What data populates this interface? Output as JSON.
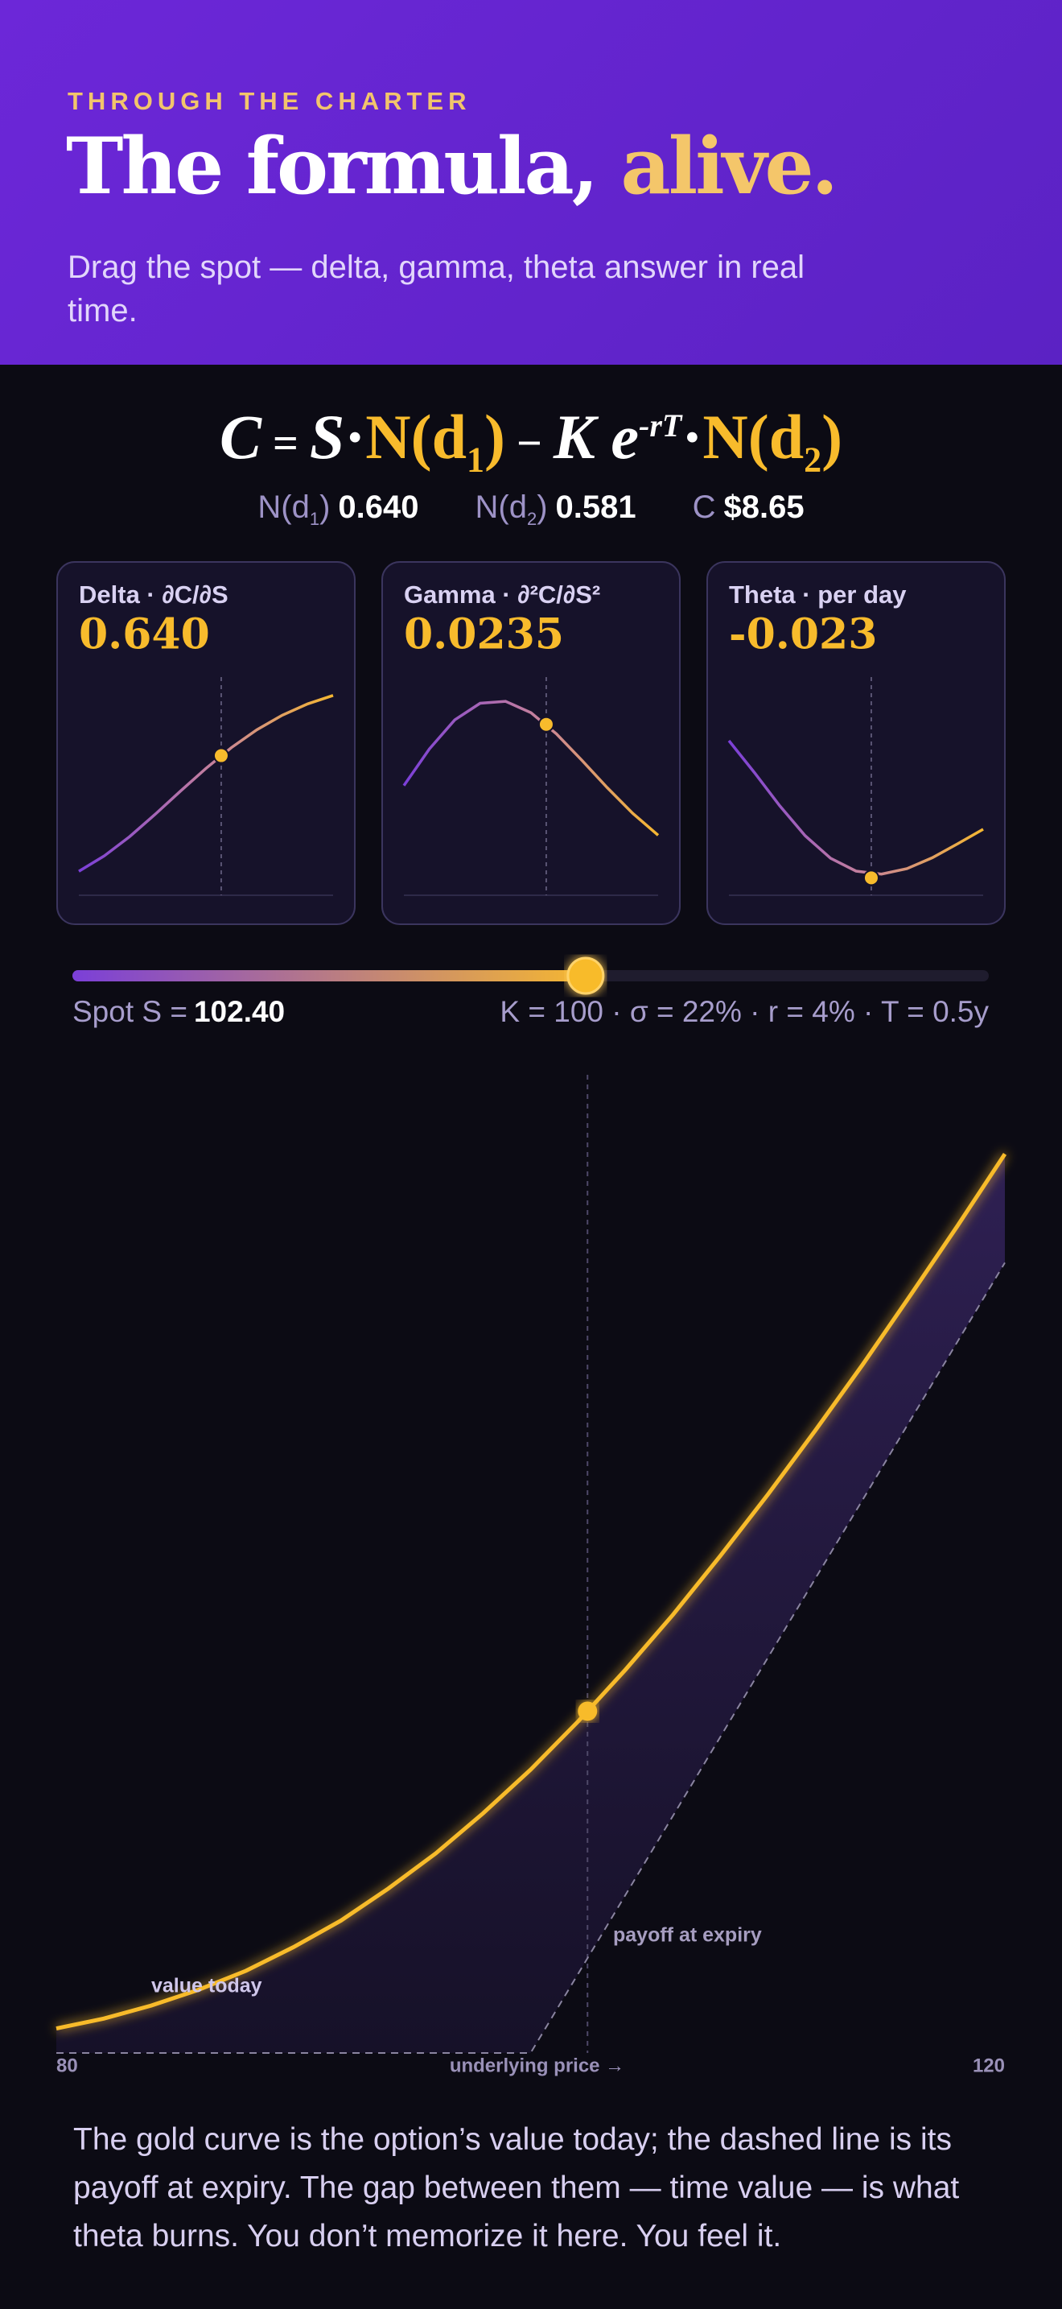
{
  "header": {
    "eyebrow": "THROUGH THE CHARTER",
    "title": [
      "The formula,",
      "alive."
    ],
    "subtitle": "Drag the spot — delta, gamma, theta answer in real time."
  },
  "formula": [
    "C",
    "=",
    "S",
    "·",
    "N(d",
    "1",
    ")",
    "−",
    "K",
    "e",
    "-rT",
    "·",
    "N(d",
    "2",
    ")"
  ],
  "readouts": [
    {
      "label": "N(d",
      "sub": "1",
      "close": ")",
      "value": "0.640"
    },
    {
      "label": "N(d",
      "sub": "2",
      "close": ")",
      "value": "0.581"
    },
    {
      "label": "C",
      "value": "$8.65"
    }
  ],
  "slider": {
    "label": "Spot S =",
    "value": 102.4,
    "value_label": "102.40",
    "params": "K = 100 · σ = 22% · r = 4% · T = 0.5y"
  },
  "chart_data": [
    {
      "type": "sparkline",
      "title": "Delta · ∂C/∂S",
      "value": 0.64,
      "value_label": "0.640",
      "x": [
        80,
        84,
        88,
        92,
        96,
        100,
        104,
        108,
        112,
        116,
        120
      ],
      "values": [
        0.1097,
        0.1803,
        0.2691,
        0.3708,
        0.4776,
        0.5817,
        0.6767,
        0.7584,
        0.8251,
        0.8771,
        0.916
      ],
      "xlim": [
        80,
        120
      ],
      "ylim": [
        0,
        1
      ]
    },
    {
      "type": "sparkline",
      "title": "Gamma · ∂²C/∂S²",
      "value": 0.0235,
      "value_label": "0.0235",
      "x": [
        80,
        84,
        88,
        92,
        96,
        100,
        104,
        108,
        112,
        116,
        120
      ],
      "values": [
        0.01508,
        0.0201,
        0.02411,
        0.0264,
        0.02667,
        0.0251,
        0.0222,
        0.01857,
        0.01479,
        0.01127,
        0.00826
      ],
      "xlim": [
        80,
        120
      ],
      "ylim": [
        0,
        0.03
      ]
    },
    {
      "type": "sparkline",
      "title": "Theta · per day",
      "value": -0.023,
      "value_label": "-0.023",
      "x": [
        80,
        84,
        88,
        92,
        96,
        100,
        104,
        108,
        112,
        116,
        120
      ],
      "values": [
        -0.00729,
        -0.01093,
        -0.01475,
        -0.01818,
        -0.02077,
        -0.02223,
        -0.02257,
        -0.02196,
        -0.0207,
        -0.0191,
        -0.01744
      ],
      "xlim": [
        80,
        120
      ],
      "ylim": [
        -0.025,
        0
      ]
    },
    {
      "type": "line",
      "x_label": "underlying price →",
      "xlim": [
        80,
        120
      ],
      "xticks": [
        80,
        120
      ],
      "ylim": [
        0,
        25
      ],
      "x": [
        80,
        82,
        84,
        86,
        88,
        90,
        92,
        94,
        96,
        98,
        100,
        102,
        104,
        106,
        108,
        110,
        112,
        114,
        116,
        118,
        120
      ],
      "series": [
        {
          "name": "value today",
          "color": "#f8bb2c",
          "values": [
            0.62,
            0.87,
            1.2,
            1.6,
            2.08,
            2.68,
            3.35,
            4.16,
            5.05,
            6.07,
            7.17,
            8.39,
            9.7,
            11.09,
            12.58,
            14.13,
            15.75,
            17.42,
            19.16,
            20.93,
            22.75
          ]
        },
        {
          "name": "payoff at expiry",
          "color": "#8a84a0",
          "values": [
            0,
            0,
            0,
            0,
            0,
            0,
            0,
            0,
            0,
            0,
            0,
            2,
            4,
            6,
            8,
            10,
            12,
            14,
            16,
            18,
            20
          ]
        }
      ],
      "marker": 8.65
    }
  ],
  "footer": "The gold curve is the option’s value today; the dashed line is its payoff at expiry. The gap between them — time value — is what theta burns. You don’t memorize it here. You feel it."
}
